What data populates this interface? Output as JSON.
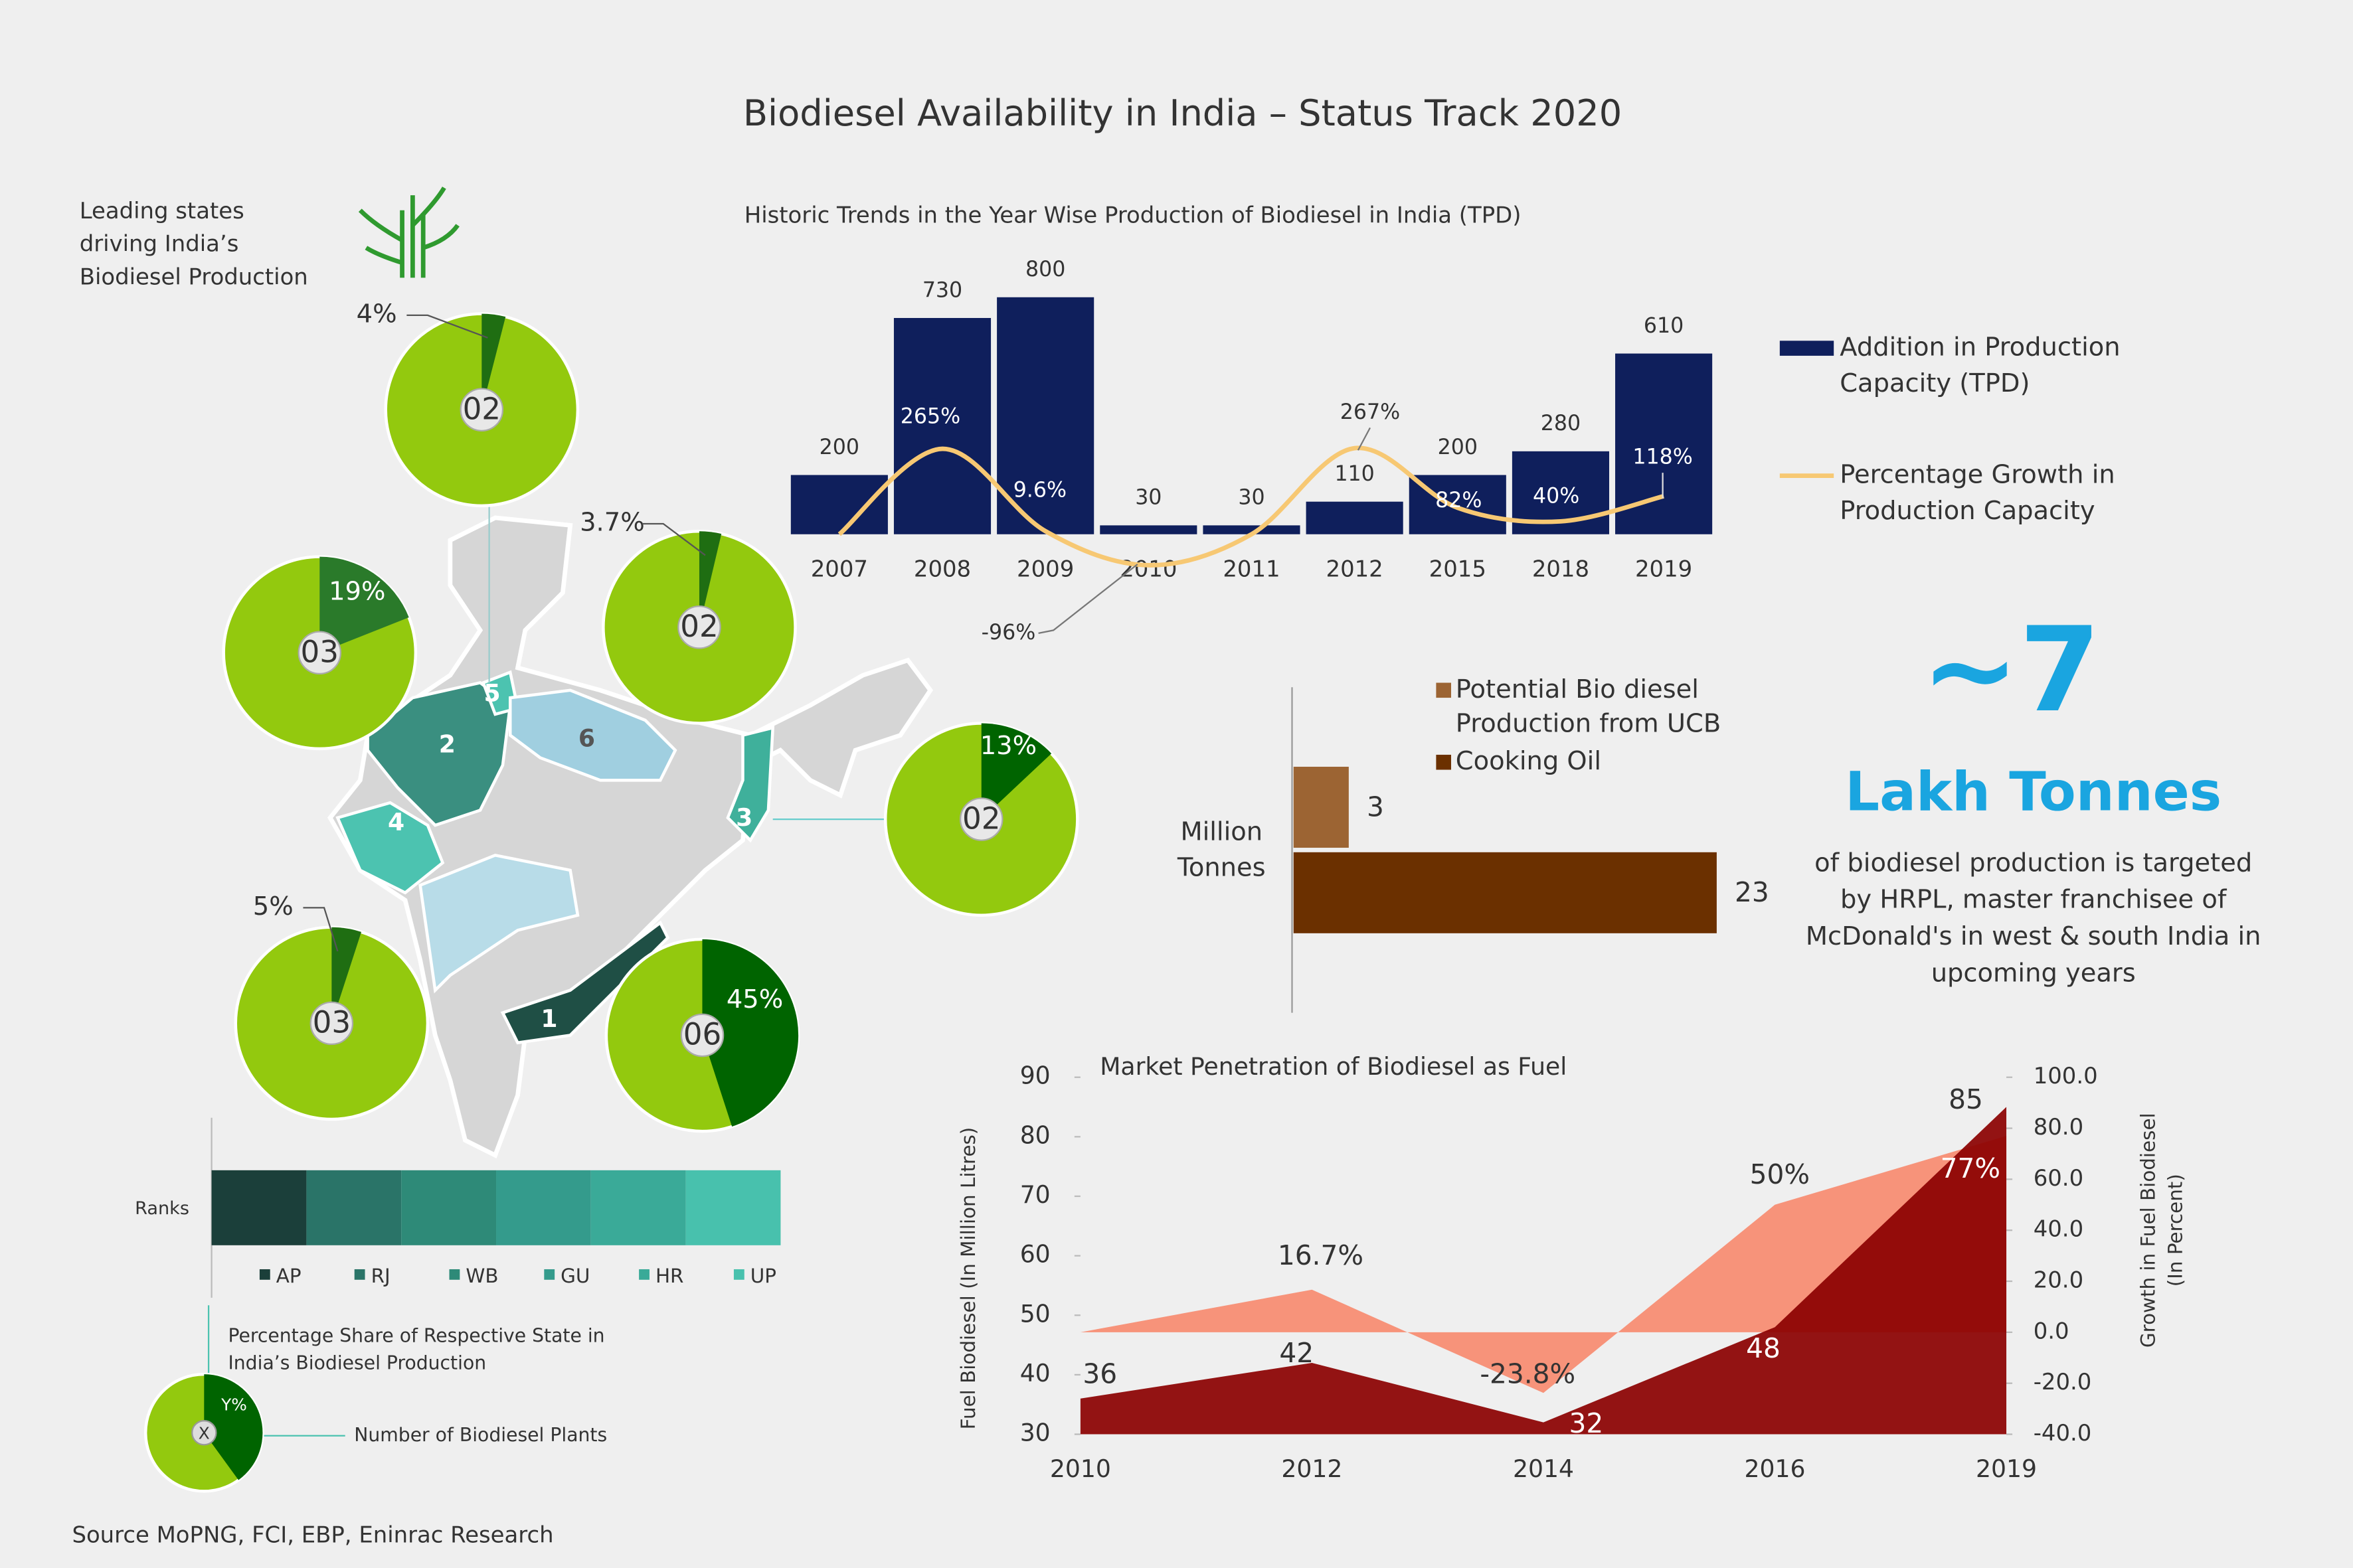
{
  "title": "Biodiesel Availability in India – Status Track 2020",
  "states_heading": "Leading states driving India’s Biodiesel Production",
  "states": [
    {
      "code": "AP",
      "rank": 1,
      "share": 45,
      "share_label": "45%",
      "plants": "06",
      "color": "#1b3f3a"
    },
    {
      "code": "RJ",
      "rank": 2,
      "share": 19,
      "share_label": "19%",
      "plants": "03",
      "color": "#2a7468"
    },
    {
      "code": "WB",
      "rank": 3,
      "share": 13,
      "share_label": "13%",
      "plants": "02",
      "color": "#2e8a78"
    },
    {
      "code": "GU",
      "rank": 4,
      "share": 5,
      "share_label": "5%",
      "plants": "03",
      "color": "#349b8c"
    },
    {
      "code": "HR",
      "rank": 5,
      "share": 4,
      "share_label": "4%",
      "plants": "02",
      "color": "#3aaa98"
    },
    {
      "code": "UP",
      "rank": 6,
      "share": 3.7,
      "share_label": "3.7%",
      "plants": "02",
      "color": "#48c1ad"
    }
  ],
  "ranks_label": "Ranks",
  "key": {
    "share_text": "Percentage Share of Respective State in India’s Biodiesel Production",
    "plants_text": "Number of Biodiesel Plants",
    "share_symbol": "Y%",
    "plants_symbol": "X"
  },
  "target": {
    "value": "~7",
    "unit": "Lakh Tonnes",
    "lines": [
      "of biodiesel production is targeted",
      "by  HRPL, master franchisee of",
      "McDonald's in west & south India in",
      "upcoming years"
    ]
  },
  "source": "Source MoPNG, FCI, EBP, Eninrac Research",
  "chart_data": [
    {
      "type": "bar",
      "title": "Historic Trends in the Year Wise Production of Biodiesel in India (TPD)",
      "categories": [
        "2007",
        "2008",
        "2009",
        "2010",
        "2011",
        "2012",
        "2015",
        "2018",
        "2019"
      ],
      "ylim": [
        0,
        800
      ],
      "y2lim": [
        0,
        735
      ],
      "series": [
        {
          "name": "Addition in Production Capacity (TPD)",
          "color": "#0f1f5c",
          "values": [
            200,
            730,
            800,
            30,
            30,
            110,
            200,
            280,
            610
          ]
        },
        {
          "name": "Percentage Growth in Production Capacity",
          "type": "line",
          "axis": "y2",
          "color": "#f7c873",
          "values": [
            0,
            265,
            9.6,
            -96,
            0,
            267,
            82,
            40,
            118
          ],
          "value_labels": [
            null,
            "265%",
            "9.6%",
            "-96%",
            null,
            "267%",
            "82%",
            "40%",
            "118%"
          ]
        }
      ]
    },
    {
      "type": "hbar",
      "ylabel": "Million Tonnes",
      "xlim": [
        0,
        25
      ],
      "series": [
        {
          "name": "Potential Bio diesel Production from UCB",
          "color": "#9c6433",
          "values": [
            3
          ]
        },
        {
          "name": "Cooking Oil",
          "color": "#6b3000",
          "values": [
            23
          ]
        }
      ]
    },
    {
      "type": "area",
      "title": "Market Penetration of Biodiesel as Fuel",
      "categories": [
        "2010",
        "2012",
        "2014",
        "2016",
        "2019"
      ],
      "ylabel": "Fuel Biodiesel (In Million Litres)",
      "y2label": "Growth in Fuel Biodiesel (In Percent)",
      "ylim": [
        30,
        90
      ],
      "yticks": [
        30,
        40,
        50,
        60,
        70,
        80,
        90
      ],
      "y2lim": [
        -40,
        100
      ],
      "y2ticks": [
        {
          "value": -40,
          "label": "-40.0"
        },
        {
          "value": -20,
          "label": "-20.0"
        },
        {
          "value": 0,
          "label": "0.0"
        },
        {
          "value": 20,
          "label": "20.0"
        },
        {
          "value": 40,
          "label": "40.0"
        },
        {
          "value": 60,
          "label": "60.0"
        },
        {
          "value": 80,
          "label": "80.0"
        },
        {
          "value": 100,
          "label": "100.0"
        }
      ],
      "series": [
        {
          "axis": "y2",
          "color": "#f7937a",
          "values": [
            0,
            16.7,
            -23.8,
            50,
            77
          ],
          "value_labels": [
            null,
            "16.7%",
            "-23.8%",
            "50%",
            "77%"
          ]
        },
        {
          "color": "#8b0000",
          "values": [
            36,
            42,
            32,
            48,
            85
          ]
        }
      ]
    }
  ]
}
